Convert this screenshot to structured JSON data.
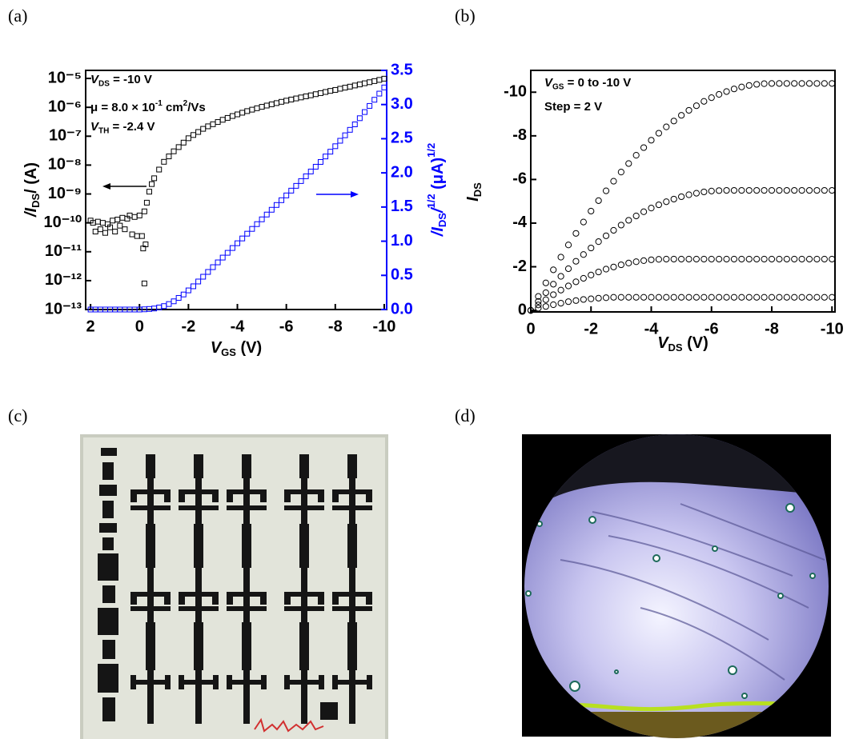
{
  "chart_data": [
    {
      "panel": "(a)",
      "type": "scatter",
      "ylog": true,
      "xlim": [
        2.2,
        -10.1
      ],
      "xticks": [
        2,
        0,
        -2,
        -4,
        -6,
        -8,
        -10
      ],
      "ylim": [
        1e-13,
        1.9e-05
      ],
      "yticks": [
        {
          "value": 1e-13,
          "label": "10⁻¹³"
        },
        {
          "value": 1e-12,
          "label": "10⁻¹²"
        },
        {
          "value": 1e-11,
          "label": "10⁻¹¹"
        },
        {
          "value": 1e-10,
          "label": "10⁻¹⁰"
        },
        {
          "value": 1e-09,
          "label": "10⁻⁹"
        },
        {
          "value": 1e-08,
          "label": "10⁻⁸"
        },
        {
          "value": 1e-07,
          "label": "10⁻⁷"
        },
        {
          "value": 1e-06,
          "label": "10⁻⁶"
        },
        {
          "value": 1e-05,
          "label": "10⁻⁵"
        }
      ],
      "y2lim": [
        0,
        3.5
      ],
      "y2ticks": [
        {
          "value": 0,
          "label": "0.0"
        },
        0.5,
        {
          "value": 1,
          "label": "1.0"
        },
        1.5,
        {
          "value": 2,
          "label": "2.0"
        },
        2.5,
        {
          "value": 3,
          "label": "3.0"
        },
        3.5
      ],
      "y2color": "#0000ff",
      "xlabel": [
        [
          "V",
          "i"
        ],
        [
          "GS",
          "sub"
        ],
        [
          " (V)",
          "n"
        ]
      ],
      "ylabel": [
        [
          "/",
          "i"
        ],
        [
          "I",
          "i"
        ],
        [
          "DS",
          "sub"
        ],
        [
          "/ (A)",
          "n"
        ]
      ],
      "y2label": [
        [
          "/",
          "i"
        ],
        [
          "I",
          "i"
        ],
        [
          "DS",
          "sub"
        ],
        [
          "/",
          "i"
        ],
        [
          "1/2",
          "sup"
        ],
        [
          " (μA)",
          "n"
        ],
        [
          "1/2",
          "sup"
        ]
      ],
      "annotations": [
        [
          [
            "V",
            "i"
          ],
          [
            "DS",
            "sub"
          ],
          [
            " = -10 V",
            "n"
          ]
        ],
        [
          [
            "μ = 8.0 × 10",
            "n"
          ],
          [
            "-1",
            "sup"
          ],
          [
            " cm",
            "n"
          ],
          [
            "2",
            "sup"
          ],
          [
            "/Vs",
            "n"
          ]
        ],
        [
          [
            "V",
            "i"
          ],
          [
            "TH",
            "sub"
          ],
          [
            " = -2.4 V",
            "n"
          ]
        ]
      ],
      "series": [
        {
          "color": "#000000",
          "marker": "square",
          "x": [
            2.0,
            1.9,
            1.8,
            1.7,
            1.6,
            1.5,
            1.4,
            1.3,
            1.2,
            1.1,
            1.0,
            0.9,
            0.8,
            0.7,
            0.6,
            0.5,
            0.4,
            0.3,
            0.2,
            0.1,
            0.0,
            -0.1,
            -0.15,
            -0.2,
            -0.25,
            -0.2,
            -0.3,
            -0.4,
            -0.5,
            -0.6,
            -0.8,
            -1.0,
            -1.2,
            -1.4,
            -1.6,
            -1.8,
            -2.0,
            -2.2,
            -2.4,
            -2.6,
            -2.8,
            -3.0,
            -3.2,
            -3.4,
            -3.6,
            -3.8,
            -4.0,
            -4.2,
            -4.4,
            -4.6,
            -4.8,
            -5.0,
            -5.2,
            -5.4,
            -5.6,
            -5.8,
            -6.0,
            -6.2,
            -6.4,
            -6.6,
            -6.8,
            -7.0,
            -7.2,
            -7.4,
            -7.6,
            -7.8,
            -8.0,
            -8.2,
            -8.4,
            -8.6,
            -8.8,
            -9.0,
            -9.2,
            -9.4,
            -9.6,
            -9.8,
            -10.0
          ],
          "values": [
            1.2e-10,
            1e-10,
            5e-11,
            1.1e-10,
            6e-11,
            1e-10,
            4.5e-11,
            9e-11,
            7e-11,
            1.2e-10,
            5e-11,
            1.3e-10,
            8e-11,
            1.5e-10,
            6e-11,
            1.4e-10,
            1.8e-10,
            4e-11,
            1.6e-10,
            3.5e-11,
            1.8e-10,
            3.5e-11,
            1.3e-11,
            8e-13,
            1.8e-11,
            2.5e-10,
            5e-10,
            1.2e-09,
            2.2e-09,
            3.5e-09,
            7e-09,
            1.3e-08,
            2e-08,
            3e-08,
            4.2e-08,
            6e-08,
            8.5e-08,
            1.1e-07,
            1.4e-07,
            1.8e-07,
            2.2e-07,
            2.6e-07,
            3.1e-07,
            3.7e-07,
            4.3e-07,
            5e-07,
            5.7e-07,
            6.5e-07,
            7.4e-07,
            8.3e-07,
            9.3e-07,
            1.04e-06,
            1.15e-06,
            1.27e-06,
            1.4e-06,
            1.55e-06,
            1.7e-06,
            1.86e-06,
            2.03e-06,
            2.2e-06,
            2.4e-06,
            2.6e-06,
            2.85e-06,
            3.1e-06,
            3.4e-06,
            3.7e-06,
            4e-06,
            4.4e-06,
            4.8e-06,
            5.2e-06,
            5.7e-06,
            6.2e-06,
            6.8e-06,
            7.4e-06,
            8.1e-06,
            8.9e-06,
            9.8e-06
          ]
        },
        {
          "color": "#0000ff",
          "marker": "square",
          "axis": "y2",
          "x": [
            2.0,
            1.8,
            1.6,
            1.4,
            1.2,
            1.0,
            0.8,
            0.6,
            0.4,
            0.2,
            0.0,
            -0.2,
            -0.4,
            -0.6,
            -0.8,
            -1.0,
            -1.2,
            -1.4,
            -1.6,
            -1.8,
            -2.0,
            -2.2,
            -2.4,
            -2.6,
            -2.8,
            -3.0,
            -3.2,
            -3.4,
            -3.6,
            -3.8,
            -4.0,
            -4.2,
            -4.4,
            -4.6,
            -4.8,
            -5.0,
            -5.2,
            -5.4,
            -5.6,
            -5.8,
            -6.0,
            -6.2,
            -6.4,
            -6.6,
            -6.8,
            -7.0,
            -7.2,
            -7.4,
            -7.6,
            -7.8,
            -8.0,
            -8.2,
            -8.4,
            -8.6,
            -8.8,
            -9.0,
            -9.2,
            -9.4,
            -9.6,
            -9.8,
            -10.0
          ],
          "values": [
            0,
            0,
            0,
            0,
            0,
            0,
            0,
            0,
            0,
            0,
            0,
            0.003,
            0.008,
            0.015,
            0.03,
            0.05,
            0.08,
            0.12,
            0.17,
            0.22,
            0.28,
            0.34,
            0.41,
            0.48,
            0.55,
            0.62,
            0.69,
            0.76,
            0.83,
            0.9,
            0.97,
            1.04,
            1.11,
            1.18,
            1.25,
            1.32,
            1.39,
            1.46,
            1.53,
            1.6,
            1.67,
            1.74,
            1.81,
            1.88,
            1.95,
            2.02,
            2.09,
            2.16,
            2.24,
            2.31,
            2.39,
            2.47,
            2.55,
            2.63,
            2.71,
            2.8,
            2.89,
            2.98,
            3.07,
            3.16,
            3.25
          ]
        }
      ]
    },
    {
      "panel": "(b)",
      "type": "scatter",
      "ylog": false,
      "xlim": [
        0,
        -10.1
      ],
      "xticks": [
        0,
        -2,
        -4,
        -6,
        -8,
        -10
      ],
      "ylim": [
        0.07,
        -11
      ],
      "yticks": [
        0,
        -2,
        -4,
        -6,
        -8,
        -10
      ],
      "xlabel": [
        [
          "V",
          "i"
        ],
        [
          "DS",
          "sub"
        ],
        [
          " (V)",
          "n"
        ]
      ],
      "ylabel": [
        [
          "I",
          "i"
        ],
        [
          "DS",
          "sub"
        ]
      ],
      "annotations": [
        [
          [
            "V",
            "i"
          ],
          [
            "GS",
            "sub"
          ],
          [
            " = 0 to -10 V",
            "n"
          ]
        ],
        [
          [
            "Step = 2 V",
            "n"
          ]
        ]
      ],
      "x": [
        0,
        -0.25,
        -0.5,
        -0.75,
        -1,
        -1.25,
        -1.5,
        -1.75,
        -2,
        -2.25,
        -2.5,
        -2.75,
        -3,
        -3.25,
        -3.5,
        -3.75,
        -4,
        -4.25,
        -4.5,
        -4.75,
        -5,
        -5.25,
        -5.5,
        -5.75,
        -6,
        -6.25,
        -6.5,
        -6.75,
        -7,
        -7.25,
        -7.5,
        -7.75,
        -8,
        -8.25,
        -8.5,
        -8.75,
        -9,
        -9.25,
        -9.5,
        -9.75,
        -10
      ],
      "series": [
        {
          "color": "#000000",
          "marker": "circle",
          "values": [
            0,
            -0.64,
            -1.26,
            -1.86,
            -2.44,
            -3.0,
            -3.53,
            -4.05,
            -4.55,
            -5.03,
            -5.48,
            -5.92,
            -6.34,
            -6.73,
            -7.11,
            -7.46,
            -7.8,
            -8.12,
            -8.41,
            -8.68,
            -8.94,
            -9.17,
            -9.38,
            -9.58,
            -9.75,
            -9.9,
            -10.03,
            -10.15,
            -10.24,
            -10.31,
            -10.36,
            -10.39,
            -10.4,
            -10.4,
            -10.4,
            -10.4,
            -10.4,
            -10.4,
            -10.4,
            -10.4,
            -10.4
          ]
        },
        {
          "color": "#000000",
          "marker": "circle",
          "values": [
            0,
            -0.41,
            -0.81,
            -1.2,
            -1.56,
            -1.91,
            -2.25,
            -2.56,
            -2.86,
            -3.15,
            -3.42,
            -3.67,
            -3.91,
            -4.13,
            -4.33,
            -4.52,
            -4.69,
            -4.84,
            -4.98,
            -5.1,
            -5.21,
            -5.3,
            -5.37,
            -5.43,
            -5.47,
            -5.49,
            -5.5,
            -5.5,
            -5.5,
            -5.5,
            -5.5,
            -5.5,
            -5.5,
            -5.5,
            -5.5,
            -5.5,
            -5.5,
            -5.5,
            -5.5,
            -5.5,
            -5.5
          ]
        },
        {
          "color": "#000000",
          "marker": "circle",
          "values": [
            0,
            -0.25,
            -0.49,
            -0.72,
            -0.93,
            -1.12,
            -1.31,
            -1.47,
            -1.62,
            -1.76,
            -1.89,
            -1.99,
            -2.09,
            -2.17,
            -2.23,
            -2.28,
            -2.32,
            -2.34,
            -2.35,
            -2.35,
            -2.35,
            -2.35,
            -2.35,
            -2.35,
            -2.35,
            -2.35,
            -2.35,
            -2.35,
            -2.35,
            -2.35,
            -2.35,
            -2.35,
            -2.35,
            -2.35,
            -2.35,
            -2.35,
            -2.35,
            -2.35,
            -2.35,
            -2.35,
            -2.35
          ]
        },
        {
          "color": "#000000",
          "marker": "circle",
          "values": [
            0,
            -0.1,
            -0.18,
            -0.26,
            -0.33,
            -0.4,
            -0.45,
            -0.5,
            -0.53,
            -0.56,
            -0.58,
            -0.6,
            -0.6,
            -0.6,
            -0.6,
            -0.6,
            -0.6,
            -0.6,
            -0.6,
            -0.6,
            -0.6,
            -0.6,
            -0.6,
            -0.6,
            -0.6,
            -0.6,
            -0.6,
            -0.6,
            -0.6,
            -0.6,
            -0.6,
            -0.6,
            -0.6,
            -0.6,
            -0.6,
            -0.6,
            -0.6,
            -0.6,
            -0.6,
            -0.6,
            -0.6
          ]
        }
      ]
    }
  ],
  "photos": [
    {
      "panel": "(c)"
    },
    {
      "panel": "(d)"
    }
  ]
}
